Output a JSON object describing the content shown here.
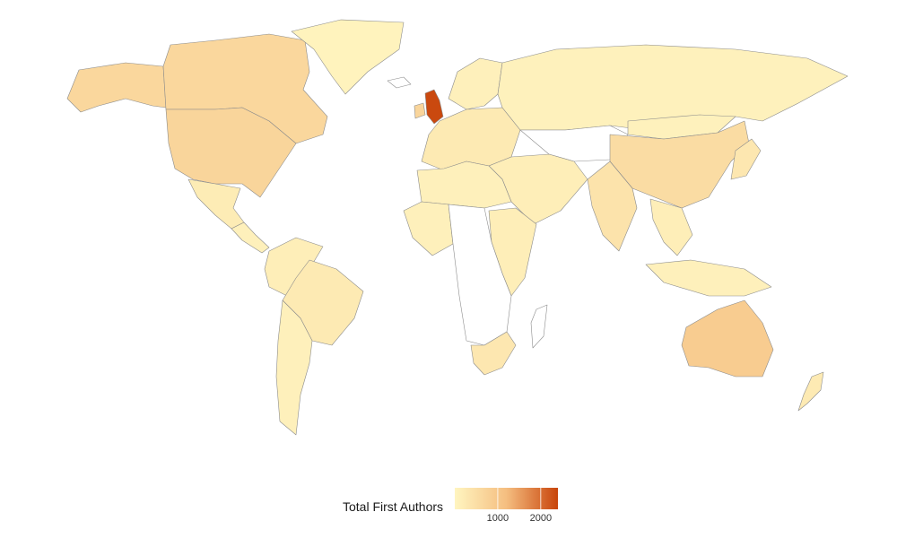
{
  "legend": {
    "title": "Total First Authors",
    "min": 0,
    "max": 2400,
    "ticks": [
      {
        "value": 1000,
        "label": "1000"
      },
      {
        "value": 2000,
        "label": "2000"
      }
    ],
    "colors": {
      "low": "#fff5c0",
      "mid": "#f5be80",
      "high": "#c8440a",
      "no_data": "#ffffff",
      "border": "#8c8c8c"
    }
  },
  "regions": [
    {
      "name": "united-kingdom",
      "value": 2350
    },
    {
      "name": "ireland",
      "value": 700
    },
    {
      "name": "united-states",
      "value": 700
    },
    {
      "name": "canada",
      "value": 650
    },
    {
      "name": "alaska",
      "value": 650
    },
    {
      "name": "greenland",
      "value": 50
    },
    {
      "name": "mexico",
      "value": 200
    },
    {
      "name": "central-america",
      "value": 100
    },
    {
      "name": "brazil",
      "value": 250
    },
    {
      "name": "south-america-north",
      "value": 150
    },
    {
      "name": "south-america-south",
      "value": 100
    },
    {
      "name": "europe",
      "value": 250
    },
    {
      "name": "scandinavia",
      "value": 100
    },
    {
      "name": "russia",
      "value": 80
    },
    {
      "name": "china",
      "value": 550
    },
    {
      "name": "mongolia",
      "value": 80
    },
    {
      "name": "india",
      "value": 400
    },
    {
      "name": "middle-east",
      "value": 150
    },
    {
      "name": "southeast-asia",
      "value": 150
    },
    {
      "name": "japan",
      "value": 300
    },
    {
      "name": "indonesia",
      "value": 100
    },
    {
      "name": "australia",
      "value": 900
    },
    {
      "name": "new-zealand",
      "value": 250
    },
    {
      "name": "north-africa",
      "value": 100
    },
    {
      "name": "west-africa",
      "value": 100
    },
    {
      "name": "east-africa",
      "value": 150
    },
    {
      "name": "south-africa",
      "value": 300
    },
    {
      "name": "central-asia",
      "value": null
    },
    {
      "name": "africa-no-data",
      "value": null
    },
    {
      "name": "madagascar",
      "value": null
    },
    {
      "name": "iceland",
      "value": null
    }
  ]
}
